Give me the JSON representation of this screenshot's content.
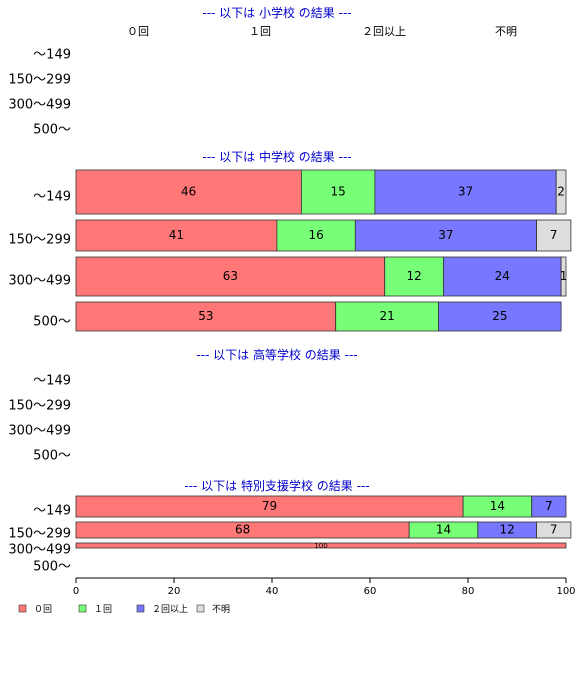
{
  "chart_data": {
    "type": "bar",
    "orientation": "horizontal",
    "stacked": true,
    "xlim": [
      0,
      100
    ],
    "x_ticks": [
      "0",
      "20",
      "40",
      "60",
      "80",
      "100"
    ],
    "series": [
      {
        "name": "０回",
        "color": "#ff7777"
      },
      {
        "name": "１回",
        "color": "#77ff77"
      },
      {
        "name": "２回以上",
        "color": "#7777ff"
      },
      {
        "name": "不明",
        "color": "#dddddd"
      }
    ],
    "panels": [
      {
        "title": "--- 以下は 小学校 の結果 ---",
        "header": [
          "０回",
          "１回",
          "２回以上",
          "不明"
        ],
        "categories": [
          "～149",
          "150～299",
          "300～499",
          "500～"
        ],
        "values": [
          null,
          null,
          null,
          null
        ]
      },
      {
        "title": "--- 以下は 中学校 の結果 ---",
        "categories": [
          "～149",
          "150～299",
          "300～499",
          "500～"
        ],
        "values": [
          [
            46,
            15,
            37,
            2
          ],
          [
            41,
            16,
            37,
            7
          ],
          [
            63,
            12,
            24,
            1
          ],
          [
            53,
            21,
            25,
            0
          ]
        ]
      },
      {
        "title": "--- 以下は 高等学校 の結果 ---",
        "categories": [
          "～149",
          "150～299",
          "300～499",
          "500～"
        ],
        "values": [
          null,
          null,
          null,
          null
        ]
      },
      {
        "title": "--- 以下は 特別支援学校 の結果 ---",
        "categories": [
          "～149",
          "150～299",
          "300～499",
          "500～"
        ],
        "values": [
          [
            79,
            14,
            7,
            0
          ],
          [
            68,
            14,
            12,
            7
          ],
          [
            100,
            0,
            0,
            0
          ],
          null
        ]
      }
    ],
    "legend_position": "bottom-left"
  }
}
